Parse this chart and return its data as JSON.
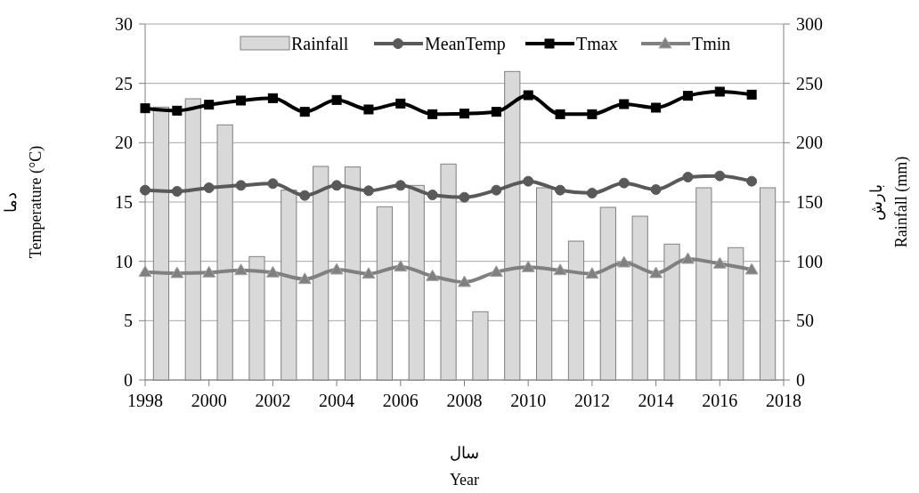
{
  "chart_data": {
    "type": "line",
    "xlabel": "سال\nYear",
    "ylabel": "دما\nTemperature (°C)",
    "y2label": "بارش\nRainfall (mm)",
    "xlim": [
      1998,
      2018
    ],
    "xticks": [
      1998,
      2000,
      2002,
      2004,
      2006,
      2008,
      2010,
      2012,
      2014,
      2016,
      2018
    ],
    "ylim": [
      0,
      30
    ],
    "yticks": [
      0,
      5,
      10,
      15,
      20,
      25,
      30
    ],
    "y2lim": [
      0,
      300
    ],
    "y2ticks": [
      0,
      50,
      100,
      150,
      200,
      250,
      300
    ],
    "x": [
      1998,
      1999,
      2000,
      2001,
      2002,
      2003,
      2004,
      2005,
      2006,
      2007,
      2008,
      2009,
      2010,
      2011,
      2012,
      2013,
      2014,
      2015,
      2016,
      2017
    ],
    "grid": "y",
    "legend": "top",
    "series": [
      {
        "name": "Rainfall",
        "type": "bar",
        "axis": "y2",
        "color": "#d9d9d9",
        "x": [
          1998.5,
          1999.5,
          2000.5,
          2001.5,
          2002.5,
          2003.5,
          2004.5,
          2005.5,
          2006.5,
          2007.5,
          2008.5,
          2009.5,
          2010.5,
          2011.5,
          2012.5,
          2013.5,
          2014.5,
          2015.5,
          2016.5,
          2017.5
        ],
        "values": [
          230,
          237,
          215,
          104,
          160,
          180,
          179.5,
          146,
          164,
          182,
          57.5,
          260,
          162,
          117,
          145.5,
          138,
          114.5,
          162,
          111.5,
          162
        ]
      },
      {
        "name": "MeanTemp",
        "color": "#595959",
        "marker": "circle",
        "values": [
          16.0,
          15.9,
          16.2,
          16.4,
          16.55,
          15.55,
          16.4,
          15.95,
          16.4,
          15.6,
          15.4,
          16.0,
          16.75,
          16.0,
          15.75,
          16.6,
          16.05,
          17.1,
          17.2,
          16.75
        ]
      },
      {
        "name": "Tmax",
        "color": "#000000",
        "marker": "square",
        "values": [
          22.9,
          22.7,
          23.2,
          23.55,
          23.75,
          22.6,
          23.6,
          22.8,
          23.3,
          22.4,
          22.45,
          22.6,
          24.0,
          22.4,
          22.4,
          23.25,
          22.95,
          23.95,
          24.3,
          24.05
        ]
      },
      {
        "name": "Tmin",
        "color": "#808080",
        "marker": "triangle",
        "values": [
          9.1,
          9.0,
          9.05,
          9.25,
          9.05,
          8.5,
          9.3,
          8.95,
          9.55,
          8.75,
          8.25,
          9.1,
          9.5,
          9.25,
          8.95,
          9.9,
          9.0,
          10.2,
          9.8,
          9.3
        ]
      }
    ]
  }
}
